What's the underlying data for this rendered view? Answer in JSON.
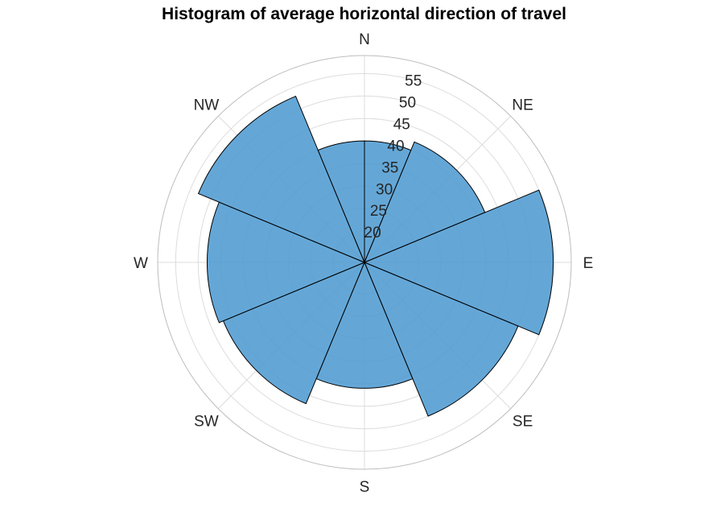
{
  "chart_data": {
    "type": "polar-histogram",
    "title": "Histogram of average horizontal direction of travel",
    "directions": [
      "N",
      "NE",
      "E",
      "SE",
      "S",
      "SW",
      "W",
      "NW"
    ],
    "direction_angles": [
      0,
      45,
      90,
      135,
      180,
      225,
      270,
      315
    ],
    "bins": [
      {
        "from": 0,
        "to": 22.5,
        "value": 40
      },
      {
        "from": 22.5,
        "to": 67.5,
        "value": 42
      },
      {
        "from": 67.5,
        "to": 112.5,
        "value": 55
      },
      {
        "from": 112.5,
        "to": 157.5,
        "value": 50
      },
      {
        "from": 157.5,
        "to": 202.5,
        "value": 41
      },
      {
        "from": 202.5,
        "to": 247.5,
        "value": 47
      },
      {
        "from": 247.5,
        "to": 292.5,
        "value": 48
      },
      {
        "from": 292.5,
        "to": 337.5,
        "value": 53
      },
      {
        "from": 337.5,
        "to": 360,
        "value": 40
      }
    ],
    "r_ticks": [
      20,
      25,
      30,
      35,
      40,
      45,
      50,
      55
    ],
    "rlim": [
      13,
      59
    ],
    "grid": true,
    "bar_color": "#4f9bd2",
    "bar_edge_color": "#000000"
  }
}
